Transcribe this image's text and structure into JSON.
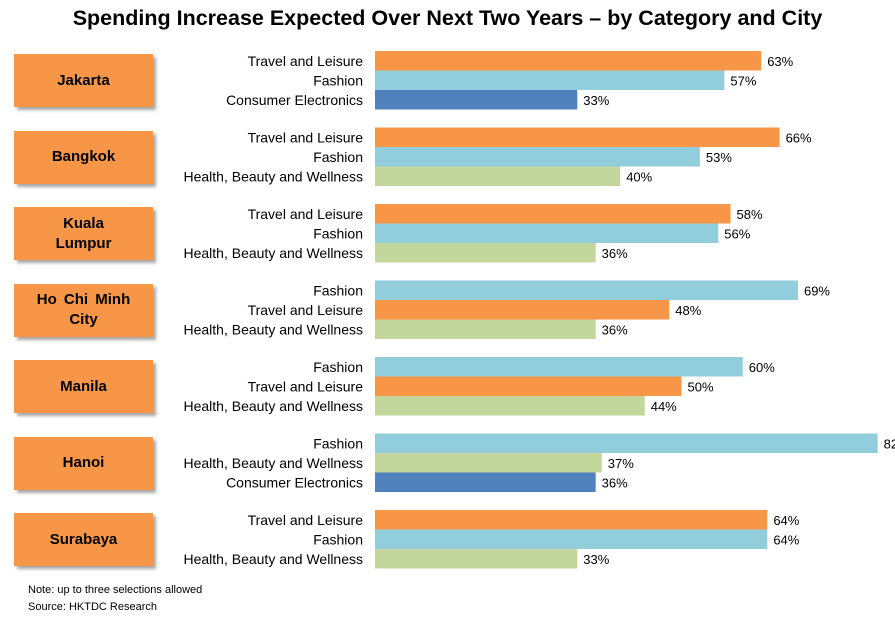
{
  "title": "Spending Increase Expected Over Next Two Years – by Category and City",
  "notes": {
    "note": "Note: up to three selections allowed",
    "source": "Source: HKTDC Research"
  },
  "colors": {
    "travel": "#F79646",
    "fashion": "#92CDDC",
    "electronics": "#4F81BD",
    "health": "#C3D69B",
    "city_box": "#F79646"
  },
  "chart_data": {
    "type": "bar",
    "orientation": "horizontal",
    "title": "Spending Increase Expected Over Next Two Years – by Category and City",
    "value_unit": "%",
    "xlim": [
      0,
      100
    ],
    "groups": [
      {
        "city": "Jakarta",
        "bars": [
          {
            "label": "Travel and Leisure",
            "value": 63,
            "color_key": "travel"
          },
          {
            "label": "Fashion",
            "value": 57,
            "color_key": "fashion"
          },
          {
            "label": "Consumer Electronics",
            "value": 33,
            "color_key": "electronics"
          }
        ]
      },
      {
        "city": "Bangkok",
        "bars": [
          {
            "label": "Travel and Leisure",
            "value": 66,
            "color_key": "travel"
          },
          {
            "label": "Fashion",
            "value": 53,
            "color_key": "fashion"
          },
          {
            "label": "Health, Beauty and Wellness",
            "value": 40,
            "color_key": "health"
          }
        ]
      },
      {
        "city": "Kuala  Lumpur",
        "bars": [
          {
            "label": "Travel and Leisure",
            "value": 58,
            "color_key": "travel"
          },
          {
            "label": "Fashion",
            "value": 56,
            "color_key": "fashion"
          },
          {
            "label": "Health, Beauty and Wellness",
            "value": 36,
            "color_key": "health"
          }
        ]
      },
      {
        "city": "Ho Chi Minh City",
        "bars": [
          {
            "label": "Fashion",
            "value": 69,
            "color_key": "fashion"
          },
          {
            "label": "Travel and Leisure",
            "value": 48,
            "color_key": "travel"
          },
          {
            "label": "Health, Beauty and Wellness",
            "value": 36,
            "color_key": "health"
          }
        ]
      },
      {
        "city": "Manila",
        "bars": [
          {
            "label": "Fashion",
            "value": 60,
            "color_key": "fashion"
          },
          {
            "label": "Travel and Leisure",
            "value": 50,
            "color_key": "travel"
          },
          {
            "label": "Health, Beauty and Wellness",
            "value": 44,
            "color_key": "health"
          }
        ]
      },
      {
        "city": "Hanoi",
        "bars": [
          {
            "label": "Fashion",
            "value": 82,
            "color_key": "fashion"
          },
          {
            "label": "Health, Beauty and Wellness",
            "value": 37,
            "color_key": "health"
          },
          {
            "label": "Consumer Electronics",
            "value": 36,
            "color_key": "electronics"
          }
        ]
      },
      {
        "city": "Surabaya",
        "bars": [
          {
            "label": "Travel and Leisure",
            "value": 64,
            "color_key": "travel"
          },
          {
            "label": "Fashion",
            "value": 64,
            "color_key": "fashion"
          },
          {
            "label": "Health, Beauty and Wellness",
            "value": 33,
            "color_key": "health"
          }
        ]
      }
    ]
  }
}
